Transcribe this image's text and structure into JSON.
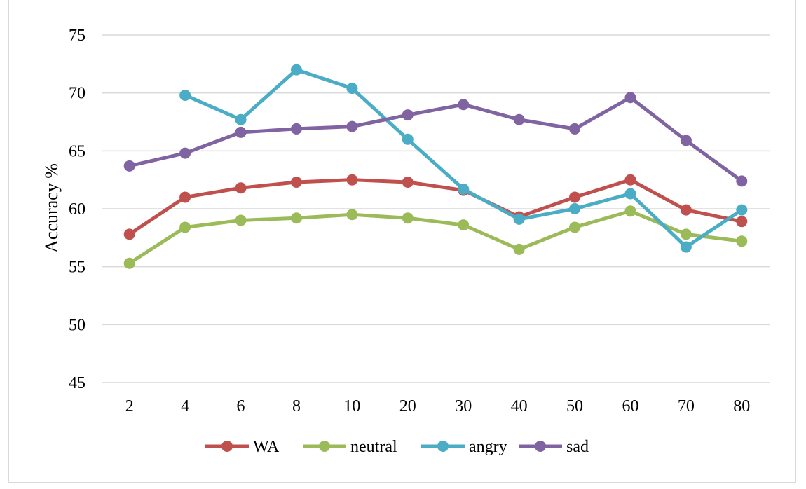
{
  "chart_data": {
    "type": "line",
    "categories": [
      "2",
      "4",
      "6",
      "8",
      "10",
      "20",
      "30",
      "40",
      "50",
      "60",
      "70",
      "80"
    ],
    "ylabel": "Accuracy %",
    "xlabel": "",
    "ylim": [
      45,
      75
    ],
    "yticks": [
      45,
      50,
      55,
      60,
      65,
      70,
      75
    ],
    "grid": true,
    "legend_position": "bottom",
    "series": [
      {
        "name": "WA",
        "color": "#c0504d",
        "values": [
          57.8,
          61.0,
          61.8,
          62.3,
          62.5,
          62.3,
          61.6,
          59.3,
          61.0,
          62.5,
          59.9,
          58.9
        ]
      },
      {
        "name": "neutral",
        "color": "#9bbb59",
        "values": [
          55.3,
          58.4,
          59.0,
          59.2,
          59.5,
          59.2,
          58.6,
          56.5,
          58.4,
          59.8,
          57.8,
          57.2
        ]
      },
      {
        "name": "angry",
        "color": "#4bacc6",
        "values": [
          null,
          69.8,
          67.7,
          72.0,
          70.4,
          66.0,
          61.7,
          59.1,
          60.0,
          61.3,
          56.7,
          59.9
        ]
      },
      {
        "name": "sad",
        "color": "#8064a2",
        "values": [
          63.7,
          64.8,
          66.6,
          66.9,
          67.1,
          68.1,
          69.0,
          67.7,
          66.9,
          69.6,
          65.9,
          62.4
        ]
      }
    ]
  }
}
